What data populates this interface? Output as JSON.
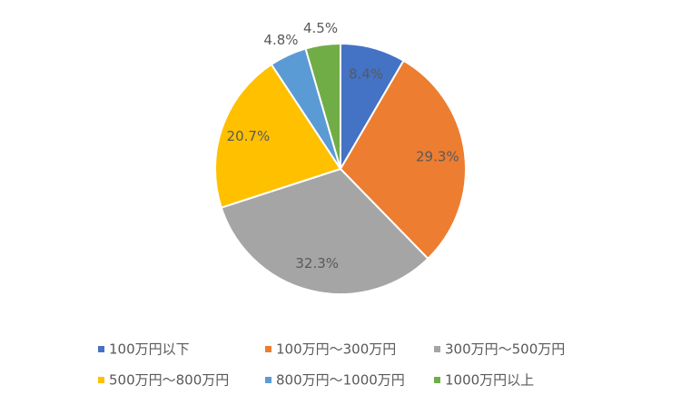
{
  "chart_data": {
    "type": "pie",
    "categories": [
      "100万円以下",
      "100万円～300万円",
      "300万円～500万円",
      "500万円～800万円",
      "800万円～1000万円",
      "1000万円以上"
    ],
    "values": [
      8.4,
      29.3,
      32.3,
      20.7,
      4.8,
      4.5
    ],
    "value_labels": [
      "8.4%",
      "29.3%",
      "32.3%",
      "20.7%",
      "4.8%",
      "4.5%"
    ],
    "colors": [
      "#4472c4",
      "#ed7d31",
      "#a5a5a5",
      "#ffc000",
      "#5b9bd5",
      "#70ad47"
    ],
    "legend": "bottom"
  }
}
